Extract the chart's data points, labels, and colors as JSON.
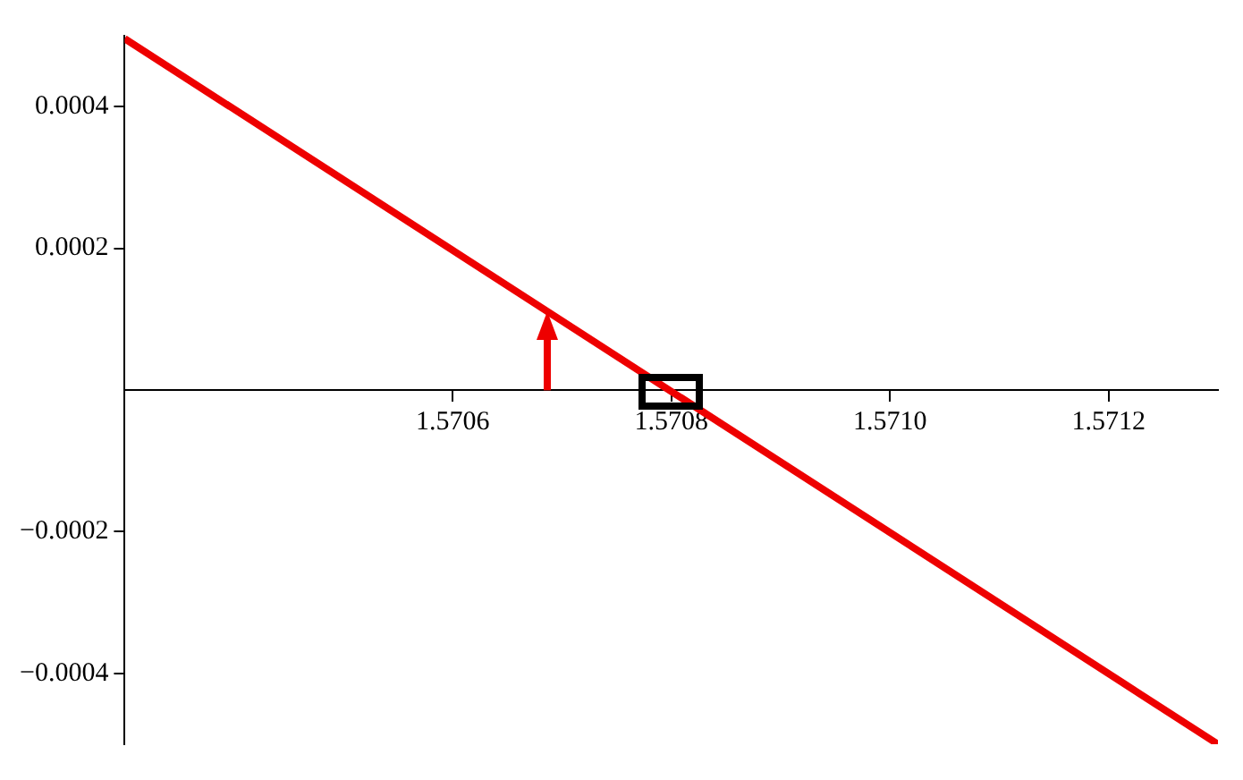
{
  "chart_data": {
    "type": "line",
    "x": [
      1.5703,
      1.5713
    ],
    "series": [
      {
        "color": "#ee0000",
        "values": [
          0.000496,
          -0.0005
        ]
      }
    ],
    "xlim": [
      1.5703,
      1.5713
    ],
    "xticks": [
      {
        "value": 1.5706,
        "label": "1.5706"
      },
      {
        "value": 1.5708,
        "label": "1.5708"
      },
      {
        "value": 1.571,
        "label": "1.5710"
      },
      {
        "value": 1.5712,
        "label": "1.5712"
      }
    ],
    "ylim": [
      -0.0005,
      0.0005
    ],
    "yticks": [
      {
        "value": -0.0004,
        "label": "−0.0004"
      },
      {
        "value": -0.0002,
        "label": "−0.0002"
      },
      {
        "value": 0.0002,
        "label": "0.0002"
      },
      {
        "value": 0.0004,
        "label": "0.0004"
      }
    ],
    "grid": false,
    "legend": false,
    "marker": "none",
    "line_style": "solid"
  }
}
